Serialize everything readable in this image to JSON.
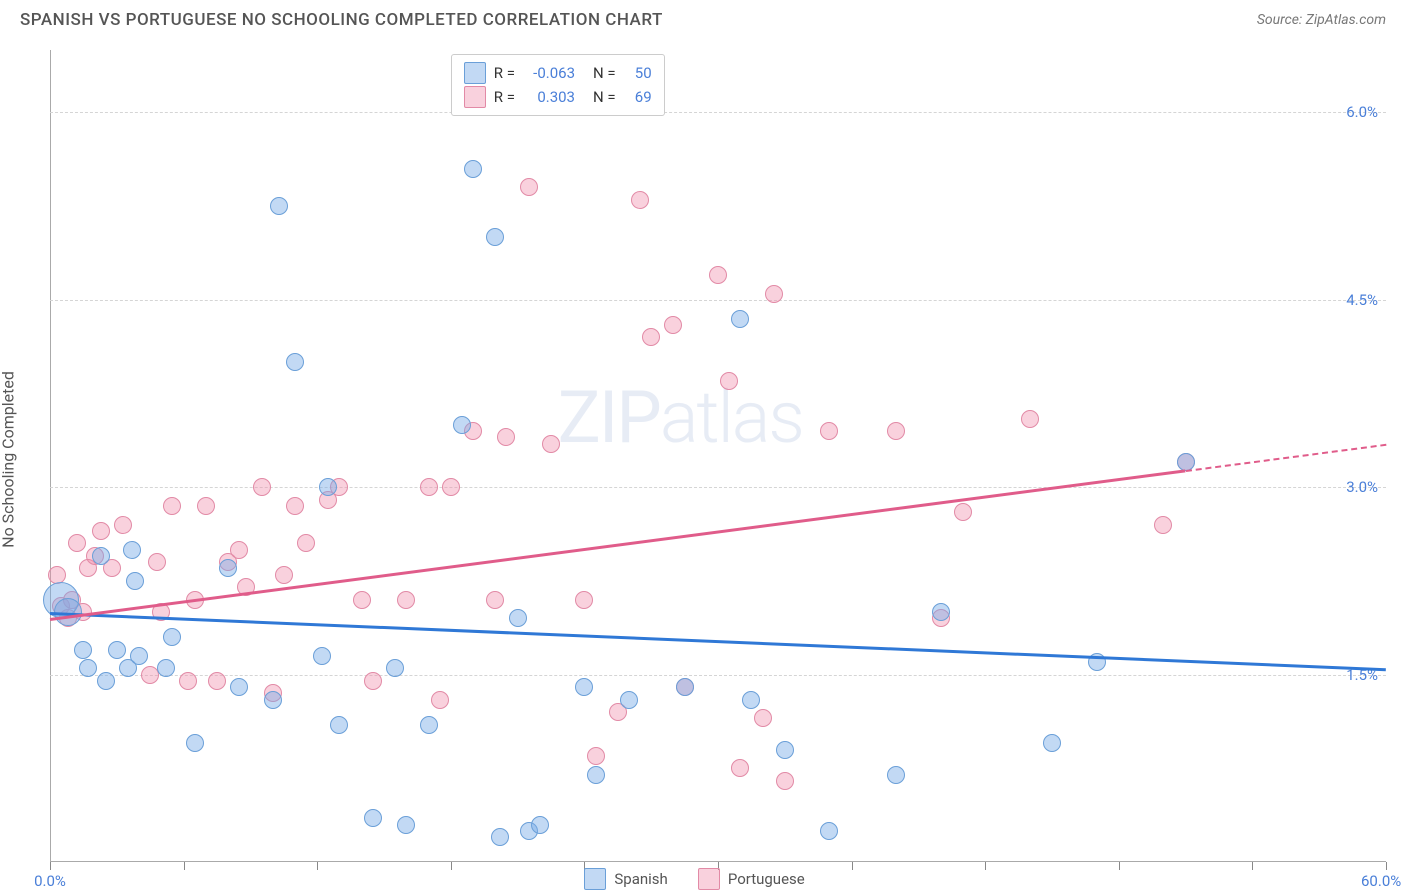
{
  "header": {
    "title": "SPANISH VS PORTUGUESE NO SCHOOLING COMPLETED CORRELATION CHART",
    "source_label": "Source:",
    "source_name": "ZipAtlas.com"
  },
  "chart": {
    "type": "scatter",
    "y_axis_label": "No Schooling Completed",
    "x_min": 0,
    "x_max": 60,
    "y_min": 0,
    "y_max": 6.5,
    "y_ticks": [
      1.5,
      3.0,
      4.5,
      6.0
    ],
    "y_tick_labels": [
      "1.5%",
      "3.0%",
      "4.5%",
      "6.0%"
    ],
    "x_min_label": "0.0%",
    "x_max_label": "60.0%",
    "x_ticks": [
      0,
      6,
      12,
      18,
      24,
      30,
      36,
      42,
      48,
      54,
      60
    ],
    "background_color": "#ffffff",
    "grid_color": "#d5d5d5",
    "axis_color": "#aaaaaa",
    "tick_label_color": "#4a7fd8",
    "point_radius": 9,
    "series": {
      "spanish": {
        "label": "Spanish",
        "fill": "rgba(120, 170, 230, 0.45)",
        "stroke": "#6a9fd8",
        "trend_color": "#2f78d6",
        "R": "-0.063",
        "N": "50",
        "trend_y_at_xmin": 2.0,
        "trend_y_at_xmax": 1.55,
        "points": [
          [
            0.5,
            2.1,
            18
          ],
          [
            0.8,
            2.0,
            14
          ],
          [
            1.5,
            1.7
          ],
          [
            1.7,
            1.55
          ],
          [
            2.3,
            2.45
          ],
          [
            2.5,
            1.45
          ],
          [
            3.0,
            1.7
          ],
          [
            3.5,
            1.55
          ],
          [
            3.7,
            2.5
          ],
          [
            3.8,
            2.25
          ],
          [
            4.0,
            1.65
          ],
          [
            5.2,
            1.55
          ],
          [
            5.5,
            1.8
          ],
          [
            6.5,
            0.95
          ],
          [
            8.0,
            2.35
          ],
          [
            8.5,
            1.4
          ],
          [
            10.0,
            1.3
          ],
          [
            10.3,
            5.25
          ],
          [
            11.0,
            4.0
          ],
          [
            12.2,
            1.65
          ],
          [
            12.5,
            3.0
          ],
          [
            13.0,
            1.1
          ],
          [
            14.5,
            0.35
          ],
          [
            15.5,
            1.55
          ],
          [
            16.0,
            0.3
          ],
          [
            17.0,
            1.1
          ],
          [
            18.5,
            3.5
          ],
          [
            19.0,
            5.55
          ],
          [
            20.0,
            5.0
          ],
          [
            20.2,
            0.2
          ],
          [
            21.0,
            1.95
          ],
          [
            21.5,
            0.25
          ],
          [
            22.0,
            0.3
          ],
          [
            24.0,
            1.4
          ],
          [
            24.5,
            0.7
          ],
          [
            26.0,
            1.3
          ],
          [
            28.5,
            1.4
          ],
          [
            31.0,
            4.35
          ],
          [
            31.5,
            1.3
          ],
          [
            33.0,
            0.9
          ],
          [
            35.0,
            0.25
          ],
          [
            38.0,
            0.7
          ],
          [
            40.0,
            2.0
          ],
          [
            45.0,
            0.95
          ],
          [
            47.0,
            1.6
          ],
          [
            51.0,
            3.2
          ]
        ]
      },
      "portuguese": {
        "label": "Portuguese",
        "fill": "rgba(240, 140, 170, 0.40)",
        "stroke": "#e28aa6",
        "trend_color": "#e05c8a",
        "R": "0.303",
        "N": "69",
        "trend_y_at_xmin": 1.95,
        "trend_y_at_xmax": 3.35,
        "trend_solid_end_x": 51,
        "points": [
          [
            0.3,
            2.3
          ],
          [
            0.5,
            2.05
          ],
          [
            0.8,
            1.95
          ],
          [
            1.0,
            2.1
          ],
          [
            1.2,
            2.55
          ],
          [
            1.5,
            2.0
          ],
          [
            1.7,
            2.35
          ],
          [
            2.0,
            2.45
          ],
          [
            2.3,
            2.65
          ],
          [
            2.8,
            2.35
          ],
          [
            3.3,
            2.7
          ],
          [
            4.5,
            1.5
          ],
          [
            4.8,
            2.4
          ],
          [
            5.0,
            2.0
          ],
          [
            5.5,
            2.85
          ],
          [
            6.2,
            1.45
          ],
          [
            6.5,
            2.1
          ],
          [
            7.0,
            2.85
          ],
          [
            7.5,
            1.45
          ],
          [
            8.0,
            2.4
          ],
          [
            8.5,
            2.5
          ],
          [
            8.8,
            2.2
          ],
          [
            9.5,
            3.0
          ],
          [
            10.0,
            1.35
          ],
          [
            10.5,
            2.3
          ],
          [
            11.0,
            2.85
          ],
          [
            11.5,
            2.55
          ],
          [
            12.5,
            2.9
          ],
          [
            13.0,
            3.0
          ],
          [
            14.0,
            2.1
          ],
          [
            14.5,
            1.45
          ],
          [
            16.0,
            2.1
          ],
          [
            17.0,
            3.0
          ],
          [
            17.5,
            1.3
          ],
          [
            18.0,
            3.0
          ],
          [
            19.0,
            3.45
          ],
          [
            20.0,
            2.1
          ],
          [
            20.5,
            3.4
          ],
          [
            21.5,
            5.4
          ],
          [
            22.5,
            3.35
          ],
          [
            24.0,
            2.1
          ],
          [
            24.5,
            0.85
          ],
          [
            25.5,
            1.2
          ],
          [
            26.5,
            5.3
          ],
          [
            27.0,
            4.2
          ],
          [
            28.0,
            4.3
          ],
          [
            28.5,
            1.4
          ],
          [
            30.0,
            4.7
          ],
          [
            30.5,
            3.85
          ],
          [
            31.0,
            0.75
          ],
          [
            32.0,
            1.15
          ],
          [
            32.5,
            4.55
          ],
          [
            33.0,
            0.65
          ],
          [
            35.0,
            3.45
          ],
          [
            38.0,
            3.45
          ],
          [
            40.0,
            1.95
          ],
          [
            41.0,
            2.8
          ],
          [
            44.0,
            3.55
          ],
          [
            50.0,
            2.7
          ],
          [
            51.0,
            3.2
          ]
        ]
      }
    }
  },
  "legend_top": {
    "r_prefix": "R =",
    "n_prefix": "N ="
  },
  "watermark": {
    "zip": "ZIP",
    "atlas": "atlas"
  }
}
